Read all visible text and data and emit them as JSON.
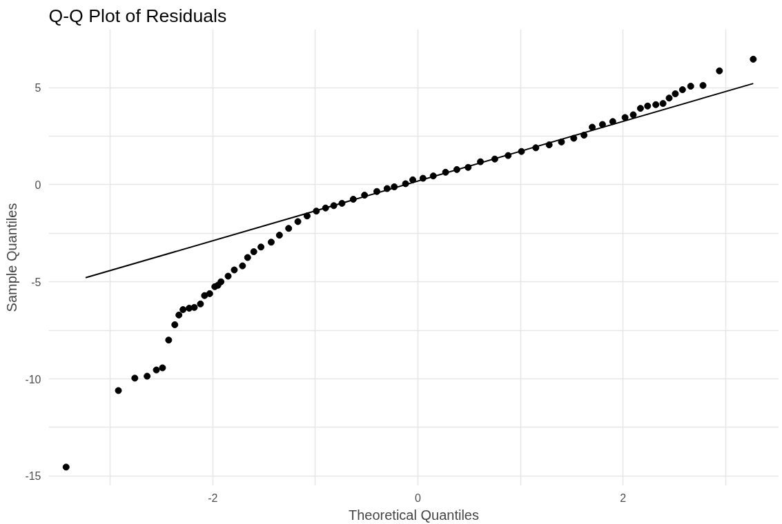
{
  "chart_data": {
    "type": "scatter",
    "title": "Q-Q Plot of Residuals",
    "xlabel": "Theoretical Quantiles",
    "ylabel": "Sample Quantiles",
    "xlim": [
      -3.6,
      3.52
    ],
    "ylim": [
      -15.5,
      8
    ],
    "xticks": [
      {
        "value": -3,
        "label": null
      },
      -2,
      {
        "value": -1,
        "label": null
      },
      0,
      {
        "value": 1,
        "label": null
      },
      2,
      {
        "value": 3,
        "label": null
      }
    ],
    "yticks": [
      -15,
      {
        "value": -12.5,
        "label": null
      },
      -10,
      {
        "value": -7.5,
        "label": null
      },
      -5,
      {
        "value": -2.5,
        "label": null
      },
      0,
      {
        "value": 2.5,
        "label": null
      },
      5
    ],
    "grid": true,
    "series": [
      {
        "marker": "circle",
        "color": "#000000",
        "x": [
          -3.43,
          -2.92,
          -2.76,
          -2.64,
          -2.55,
          -2.49,
          -2.43,
          -2.37,
          -2.33,
          -2.29,
          -2.23,
          -2.18,
          -2.12,
          -2.08,
          -2.03,
          -1.98,
          -1.95,
          -1.92,
          -1.85,
          -1.79,
          -1.71,
          -1.66,
          -1.6,
          -1.53,
          -1.43,
          -1.35,
          -1.26,
          -1.17,
          -1.08,
          -0.99,
          -0.9,
          -0.82,
          -0.74,
          -0.63,
          -0.52,
          -0.4,
          -0.3,
          -0.23,
          -0.12,
          -0.05,
          0.05,
          0.15,
          0.27,
          0.38,
          0.49,
          0.61,
          0.75,
          0.88,
          1.01,
          1.15,
          1.28,
          1.4,
          1.52,
          1.62,
          1.7,
          1.8,
          1.9,
          2.02,
          2.1,
          2.17,
          2.24,
          2.32,
          2.39,
          2.45,
          2.51,
          2.58,
          2.66,
          2.78,
          2.94,
          3.27
        ],
        "values": [
          -14.54,
          -10.6,
          -9.96,
          -9.86,
          -9.54,
          -9.43,
          -8.0,
          -7.21,
          -6.71,
          -6.43,
          -6.36,
          -6.32,
          -6.14,
          -5.71,
          -5.61,
          -5.25,
          -5.18,
          -5.0,
          -4.71,
          -4.39,
          -4.18,
          -3.75,
          -3.45,
          -3.21,
          -2.96,
          -2.6,
          -2.25,
          -1.9,
          -1.61,
          -1.36,
          -1.2,
          -1.08,
          -0.96,
          -0.75,
          -0.54,
          -0.35,
          -0.2,
          -0.11,
          0.05,
          0.25,
          0.33,
          0.45,
          0.64,
          0.78,
          0.89,
          1.18,
          1.32,
          1.5,
          1.71,
          1.9,
          2.05,
          2.2,
          2.39,
          2.55,
          2.96,
          3.1,
          3.25,
          3.46,
          3.6,
          3.93,
          4.05,
          4.12,
          4.18,
          4.46,
          4.68,
          4.89,
          5.07,
          5.11,
          5.86,
          6.46
        ]
      },
      {
        "type": "line",
        "line_style": "solid",
        "color": "#000000",
        "x": [
          -3.24,
          3.27
        ],
        "values": [
          -4.79,
          5.21
        ]
      }
    ]
  }
}
